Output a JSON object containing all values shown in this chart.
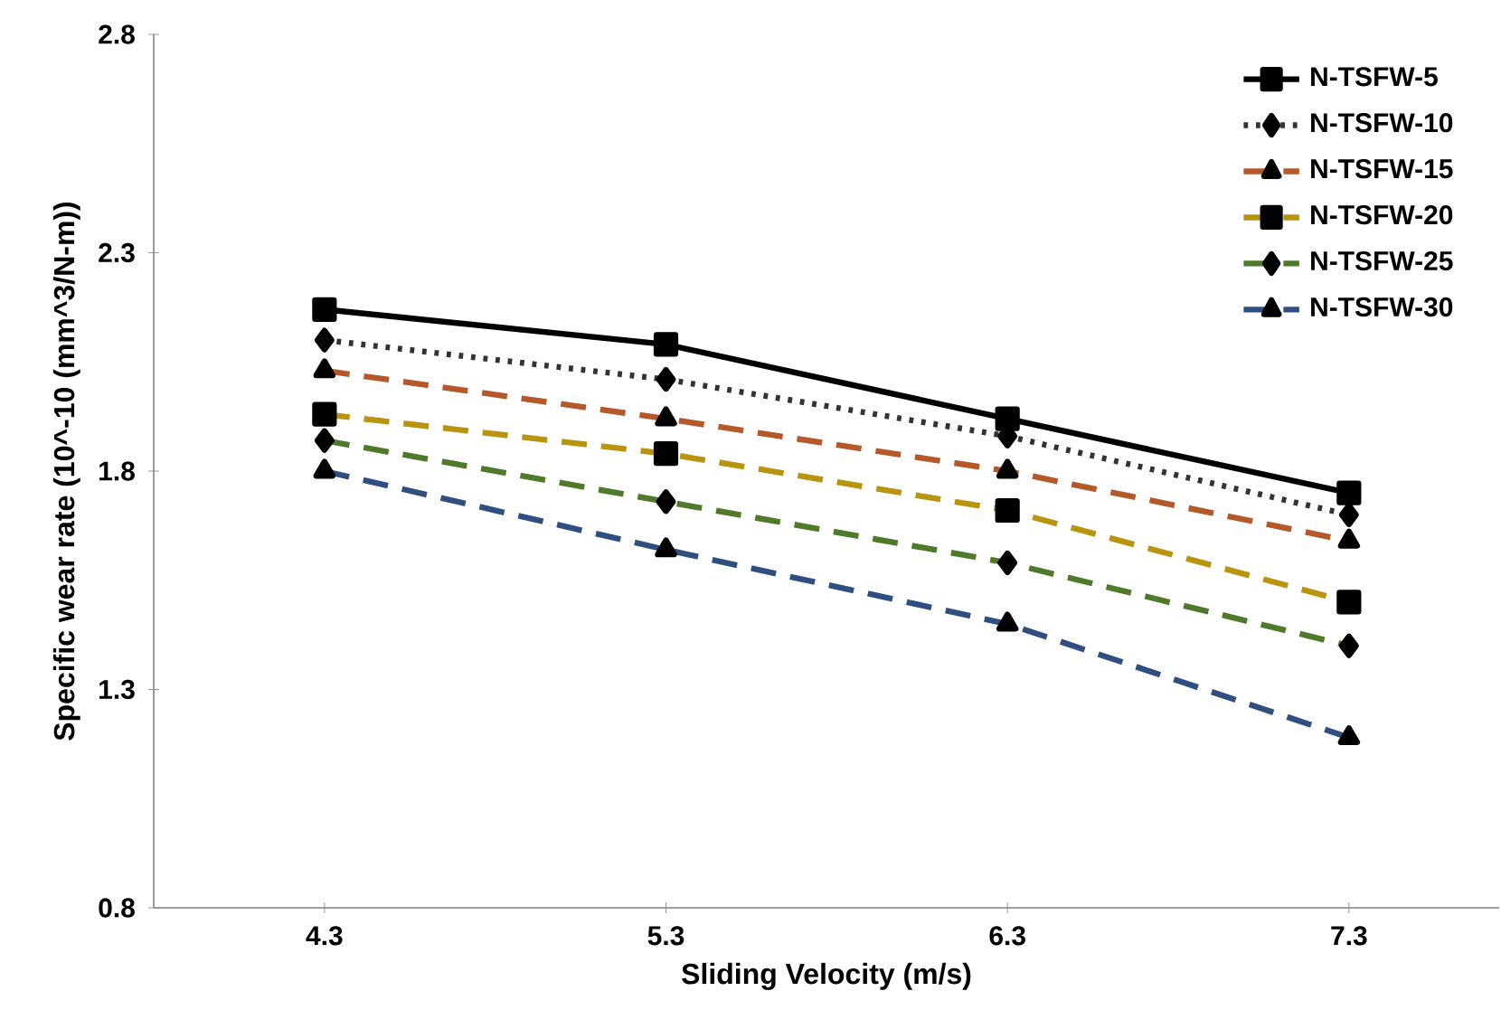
{
  "chart_data": {
    "type": "line",
    "xlabel": "Sliding Velocity (m/s)",
    "ylabel": "Specific wear rate (10^-10 (mm^3/N-m))",
    "categories": [
      "4.3",
      "5.3",
      "6.3",
      "7.3"
    ],
    "ylim": [
      0.8,
      2.8
    ],
    "yticks": [
      0.8,
      1.3,
      1.8,
      2.3,
      2.8
    ],
    "grid": false,
    "legend": "top right",
    "series": [
      {
        "name": "N-TSFW-5",
        "color": "#000000",
        "marker": "square",
        "line_style": "solid",
        "values": [
          2.17,
          2.09,
          1.92,
          1.75
        ]
      },
      {
        "name": "N-TSFW-10",
        "color": "#333333",
        "marker": "diamond",
        "line_style": "dotted",
        "values": [
          2.1,
          2.01,
          1.88,
          1.7
        ]
      },
      {
        "name": "N-TSFW-15",
        "color": "#b5582a",
        "marker": "triangle",
        "line_style": "dashed",
        "values": [
          2.03,
          1.92,
          1.8,
          1.64
        ]
      },
      {
        "name": "N-TSFW-20",
        "color": "#b8940f",
        "marker": "square",
        "line_style": "dashed",
        "values": [
          1.93,
          1.84,
          1.71,
          1.5
        ]
      },
      {
        "name": "N-TSFW-25",
        "color": "#4f7a2a",
        "marker": "diamond",
        "line_style": "dashed",
        "values": [
          1.87,
          1.73,
          1.59,
          1.4
        ]
      },
      {
        "name": "N-TSFW-30",
        "color": "#2f4f80",
        "marker": "triangle",
        "line_style": "dashed",
        "values": [
          1.8,
          1.62,
          1.45,
          1.19
        ]
      }
    ]
  }
}
